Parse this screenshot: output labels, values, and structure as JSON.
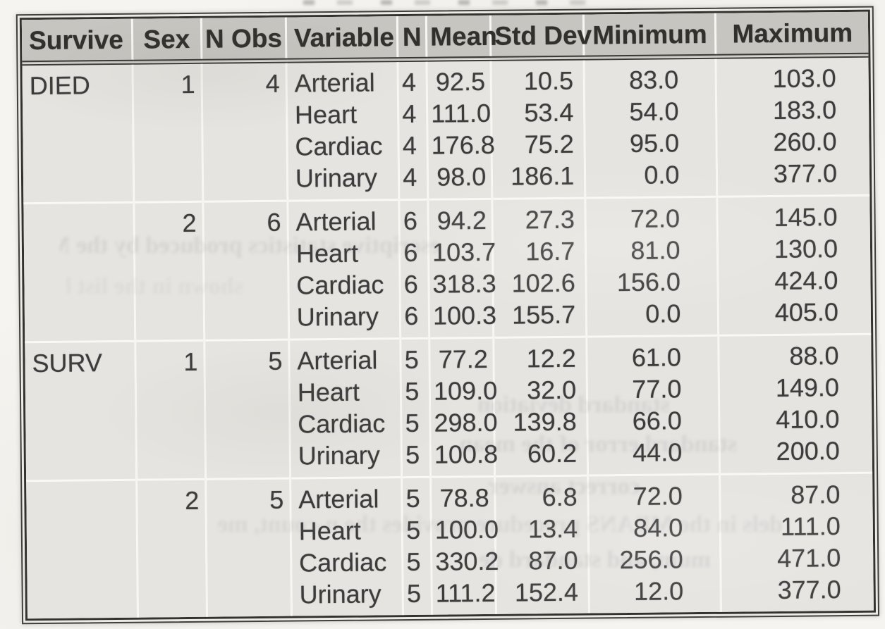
{
  "table": {
    "columns": [
      "Survive",
      "Sex",
      "N Obs",
      "Variable",
      "N",
      "Mean",
      "Std Dev",
      "Minimum",
      "Maximum"
    ],
    "groups": [
      {
        "survive": "DIED",
        "sex": "1",
        "n_obs": "4",
        "rows": [
          {
            "variable": "Arterial",
            "n": "4",
            "mean": "92.5",
            "std_dev": "10.5",
            "minimum": "83.0",
            "maximum": "103.0"
          },
          {
            "variable": "Heart",
            "n": "4",
            "mean": "111.0",
            "std_dev": "53.4",
            "minimum": "54.0",
            "maximum": "183.0"
          },
          {
            "variable": "Cardiac",
            "n": "4",
            "mean": "176.8",
            "std_dev": "75.2",
            "minimum": "95.0",
            "maximum": "260.0"
          },
          {
            "variable": "Urinary",
            "n": "4",
            "mean": "98.0",
            "std_dev": "186.1",
            "minimum": "0.0",
            "maximum": "377.0"
          }
        ]
      },
      {
        "survive": "",
        "sex": "2",
        "n_obs": "6",
        "rows": [
          {
            "variable": "Arterial",
            "n": "6",
            "mean": "94.2",
            "std_dev": "27.3",
            "minimum": "72.0",
            "maximum": "145.0"
          },
          {
            "variable": "Heart",
            "n": "6",
            "mean": "103.7",
            "std_dev": "16.7",
            "minimum": "81.0",
            "maximum": "130.0"
          },
          {
            "variable": "Cardiac",
            "n": "6",
            "mean": "318.3",
            "std_dev": "102.6",
            "minimum": "156.0",
            "maximum": "424.0"
          },
          {
            "variable": "Urinary",
            "n": "6",
            "mean": "100.3",
            "std_dev": "155.7",
            "minimum": "0.0",
            "maximum": "405.0"
          }
        ]
      },
      {
        "survive": "SURV",
        "sex": "1",
        "n_obs": "5",
        "rows": [
          {
            "variable": "Arterial",
            "n": "5",
            "mean": "77.2",
            "std_dev": "12.2",
            "minimum": "61.0",
            "maximum": "88.0"
          },
          {
            "variable": "Heart",
            "n": "5",
            "mean": "109.0",
            "std_dev": "32.0",
            "minimum": "77.0",
            "maximum": "149.0"
          },
          {
            "variable": "Cardiac",
            "n": "5",
            "mean": "298.0",
            "std_dev": "139.8",
            "minimum": "66.0",
            "maximum": "410.0"
          },
          {
            "variable": "Urinary",
            "n": "5",
            "mean": "100.8",
            "std_dev": "60.2",
            "minimum": "44.0",
            "maximum": "200.0"
          }
        ]
      },
      {
        "survive": "",
        "sex": "2",
        "n_obs": "5",
        "rows": [
          {
            "variable": "Arterial",
            "n": "5",
            "mean": "78.8",
            "std_dev": "6.8",
            "minimum": "72.0",
            "maximum": "87.0"
          },
          {
            "variable": "Heart",
            "n": "5",
            "mean": "100.0",
            "std_dev": "13.4",
            "minimum": "84.0",
            "maximum": "111.0"
          },
          {
            "variable": "Cardiac",
            "n": "5",
            "mean": "330.2",
            "std_dev": "87.0",
            "minimum": "256.0",
            "maximum": "471.0"
          },
          {
            "variable": "Urinary",
            "n": "5",
            "mean": "111.2",
            "std_dev": "152.4",
            "minimum": "12.0",
            "maximum": "377.0"
          }
        ]
      }
    ]
  },
  "scan_artifacts": {
    "bleed_through_fragments": [
      {
        "text": "escriptive statistics produced by the MEANS procedure are"
      },
      {
        "text": "shown in the list below"
      },
      {
        "text": "standard deviation"
      },
      {
        "text": "standard error of the mean"
      },
      {
        "text": "correct answer"
      },
      {
        "text": "dels in the MEANS procedure provides the n-count, me"
      },
      {
        "text": "mum, and standard de"
      }
    ]
  }
}
